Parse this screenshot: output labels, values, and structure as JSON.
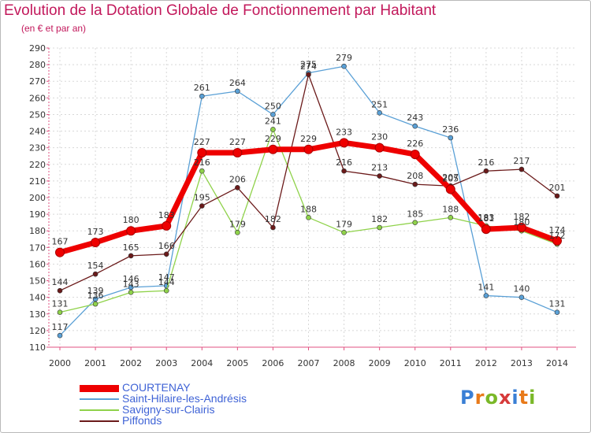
{
  "title": "Evolution de la Dotation Globale de Fonctionnement par Habitant",
  "subtitle": "(en € et par an)",
  "logo": {
    "letters": [
      "P",
      "r",
      "o",
      "x",
      "i",
      "t",
      "i"
    ],
    "colors": [
      "#3a7fd5",
      "#e87a1a",
      "#7ab828",
      "#d63a3a",
      "#3a7fd5",
      "#e87a1a",
      "#7ab828"
    ]
  },
  "chart_data": {
    "type": "line",
    "title": "Evolution de la Dotation Globale de Fonctionnement par Habitant",
    "subtitle": "(en € et par an)",
    "xlabel": "",
    "ylabel": "",
    "ylim": [
      110,
      290
    ],
    "yticks": [
      110,
      120,
      130,
      140,
      150,
      160,
      170,
      180,
      190,
      200,
      210,
      220,
      230,
      240,
      250,
      260,
      270,
      280,
      290
    ],
    "grid": true,
    "categories": [
      "2000",
      "2001",
      "2002",
      "2003",
      "2004",
      "2005",
      "2006",
      "2007",
      "2008",
      "2009",
      "2010",
      "2011",
      "2012",
      "2013",
      "2014"
    ],
    "series": [
      {
        "name": "Saint-Hilaire-les-Andrésis",
        "color": "#5aa0d6",
        "values": [
          117,
          139,
          146,
          147,
          261,
          264,
          250,
          275,
          279,
          251,
          243,
          236,
          141,
          140,
          131
        ]
      },
      {
        "name": "Savigny-sur-Clairis",
        "color": "#8fd24a",
        "values": [
          131,
          136,
          143,
          144,
          216,
          179,
          241,
          188,
          179,
          182,
          185,
          188,
          183,
          180,
          172
        ]
      },
      {
        "name": "Piffonds",
        "color": "#6b1a1a",
        "values": [
          144,
          154,
          165,
          166,
          195,
          206,
          182,
          274,
          216,
          213,
          208,
          207,
          216,
          217,
          201
        ]
      },
      {
        "name": "COURTENAY",
        "color": "#ee0000",
        "values": [
          167,
          173,
          180,
          183,
          227,
          227,
          229,
          229,
          233,
          230,
          226,
          205,
          181,
          182,
          174
        ]
      }
    ],
    "legend": {
      "position": "bottom-left",
      "entries": [
        "COURTENAY",
        "Saint-Hilaire-les-Andrésis",
        "Savigny-sur-Clairis",
        "Piffonds"
      ]
    }
  }
}
